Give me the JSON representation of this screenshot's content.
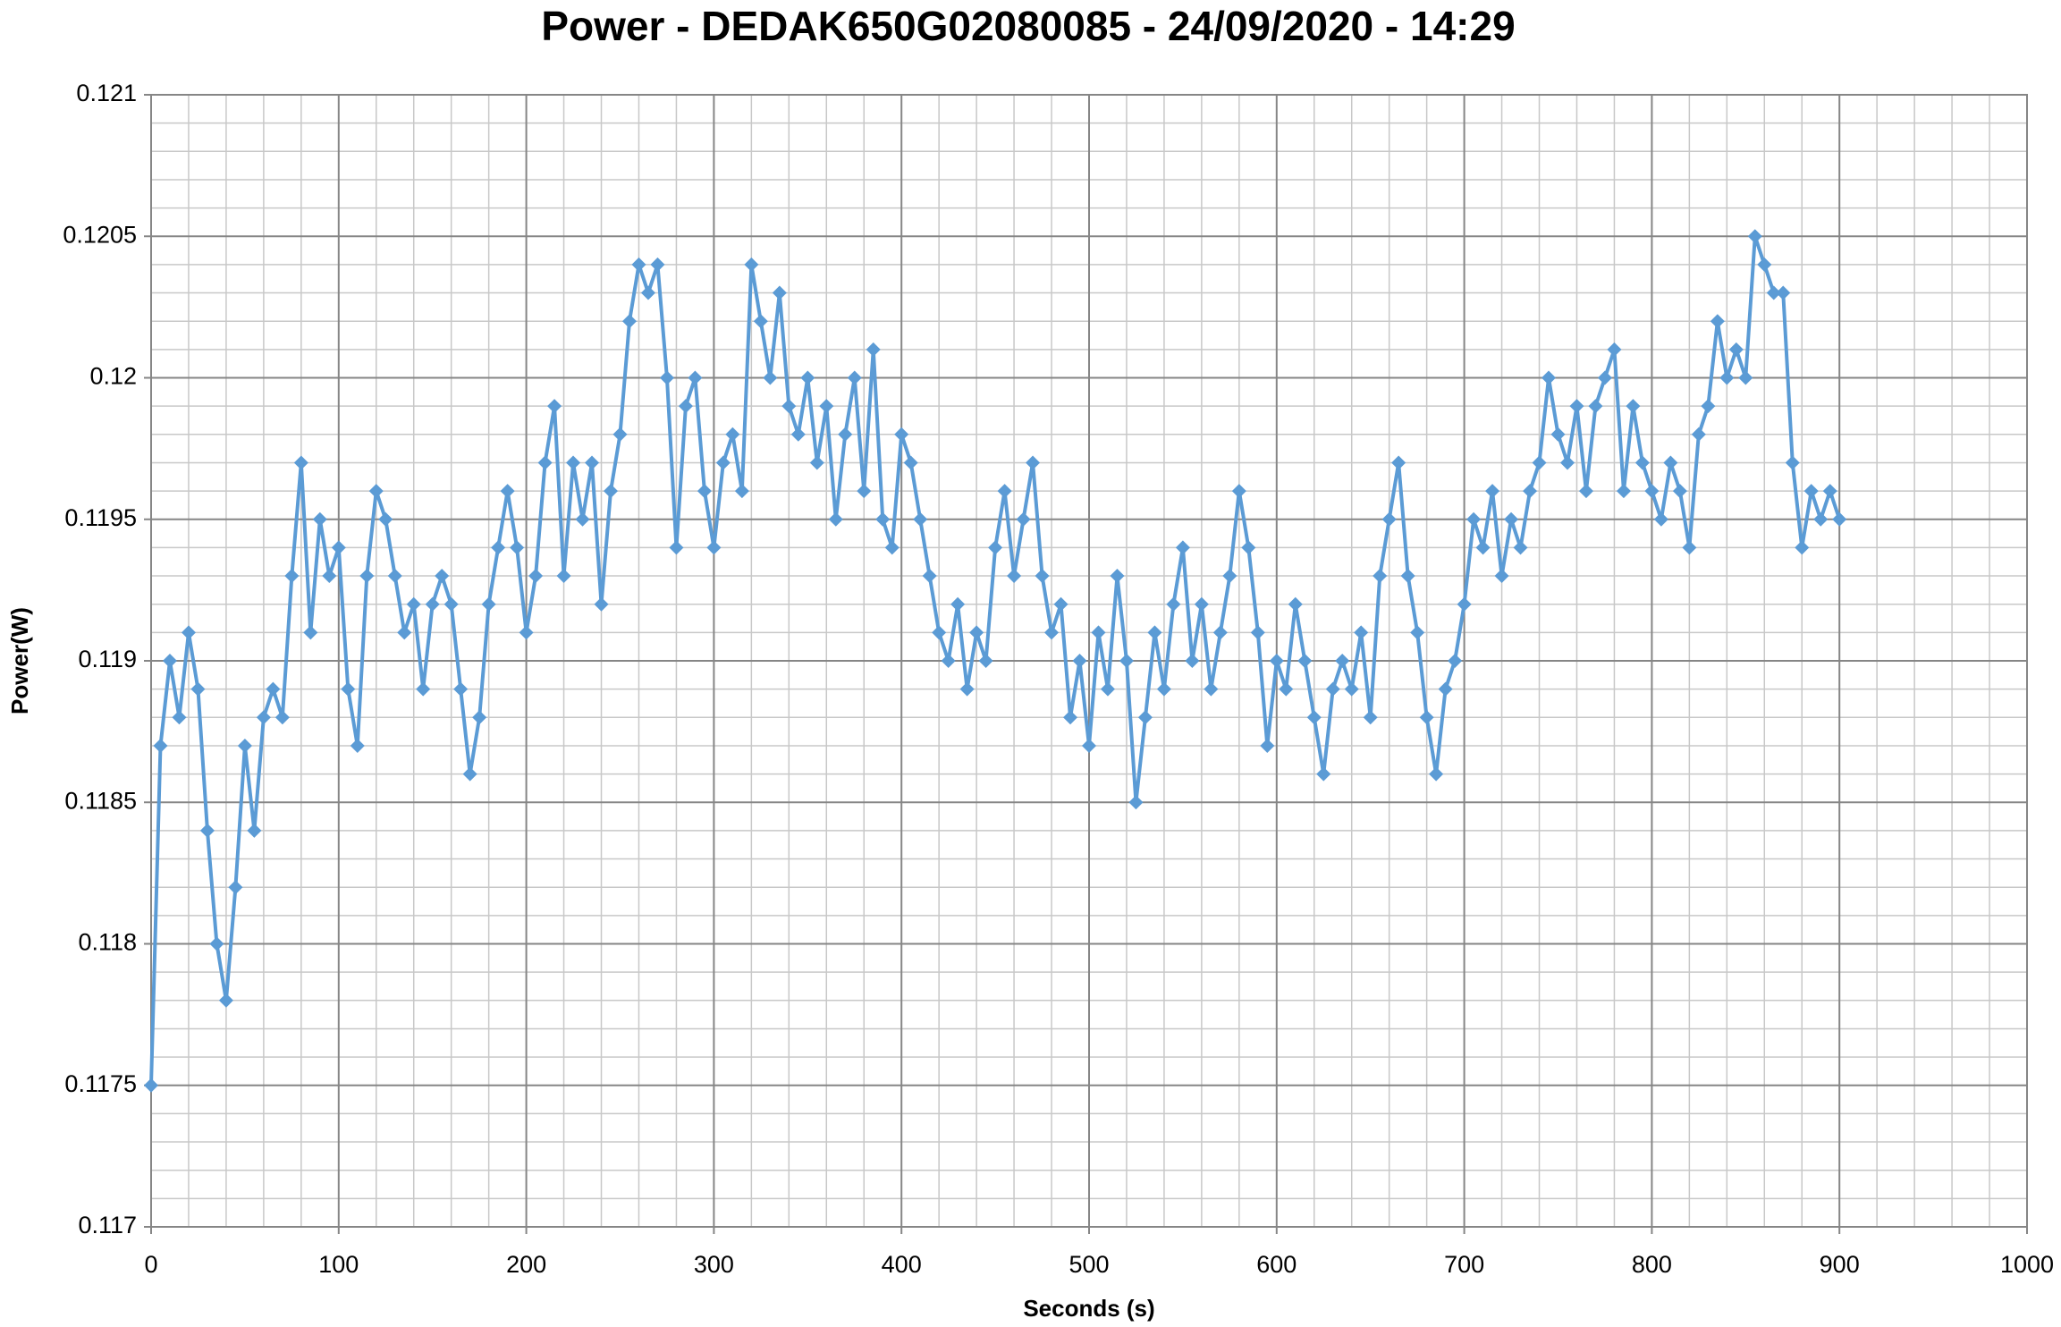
{
  "chart_data": {
    "type": "line",
    "title": "Power - DEDAK650G02080085 - 24/09/2020 - 14:29",
    "x_label": "Seconds (s)",
    "y_label": "Power(W)",
    "xlim": [
      0,
      1000
    ],
    "xticks": [
      0,
      100,
      200,
      300,
      400,
      500,
      600,
      700,
      800,
      900,
      1000
    ],
    "ylim": [
      0.117,
      0.121
    ],
    "yticks": [
      0.117,
      0.1175,
      0.118,
      0.1185,
      0.119,
      0.1195,
      0.12,
      0.1205,
      0.121
    ],
    "grid": true,
    "x": [
      0,
      5,
      10,
      15,
      20,
      25,
      30,
      35,
      40,
      45,
      50,
      55,
      60,
      65,
      70,
      75,
      80,
      85,
      90,
      95,
      100,
      105,
      110,
      115,
      120,
      125,
      130,
      135,
      140,
      145,
      150,
      155,
      160,
      165,
      170,
      175,
      180,
      185,
      190,
      195,
      200,
      205,
      210,
      215,
      220,
      225,
      230,
      235,
      240,
      245,
      250,
      255,
      260,
      265,
      270,
      275,
      280,
      285,
      290,
      295,
      300,
      305,
      310,
      315,
      320,
      325,
      330,
      335,
      340,
      345,
      350,
      355,
      360,
      365,
      370,
      375,
      380,
      385,
      390,
      395,
      400,
      405,
      410,
      415,
      420,
      425,
      430,
      435,
      440,
      445,
      450,
      455,
      460,
      465,
      470,
      475,
      480,
      485,
      490,
      495,
      500,
      505,
      510,
      515,
      520,
      525,
      530,
      535,
      540,
      545,
      550,
      555,
      560,
      565,
      570,
      575,
      580,
      585,
      590,
      595,
      600,
      605,
      610,
      615,
      620,
      625,
      630,
      635,
      640,
      645,
      650,
      655,
      660,
      665,
      670,
      675,
      680,
      685,
      690,
      695,
      700,
      705,
      710,
      715,
      720,
      725,
      730,
      735,
      740,
      745,
      750,
      755,
      760,
      765,
      770,
      775,
      780,
      785,
      790,
      795,
      800,
      805,
      810,
      815,
      820,
      825,
      830,
      835,
      840,
      845,
      850,
      855,
      860,
      865,
      870,
      875,
      880,
      885,
      890,
      895,
      900
    ],
    "series": [
      {
        "color": "#5b9bd5",
        "values": [
          0.1175,
          0.1187,
          0.119,
          0.1188,
          0.1191,
          0.1189,
          0.1184,
          0.118,
          0.1178,
          0.1182,
          0.1187,
          0.1184,
          0.1188,
          0.1189,
          0.1188,
          0.1193,
          0.1197,
          0.1191,
          0.1195,
          0.1193,
          0.1194,
          0.1189,
          0.1187,
          0.1193,
          0.1196,
          0.1195,
          0.1193,
          0.1191,
          0.1192,
          0.1189,
          0.1192,
          0.1193,
          0.1192,
          0.1189,
          0.1186,
          0.1188,
          0.1192,
          0.1194,
          0.1196,
          0.1194,
          0.1191,
          0.1193,
          0.1197,
          0.1199,
          0.1193,
          0.1197,
          0.1195,
          0.1197,
          0.1192,
          0.1196,
          0.1198,
          0.1202,
          0.1204,
          0.1203,
          0.1204,
          0.12,
          0.1194,
          0.1199,
          0.12,
          0.1196,
          0.1194,
          0.1197,
          0.1198,
          0.1196,
          0.1204,
          0.1202,
          0.12,
          0.1203,
          0.1199,
          0.1198,
          0.12,
          0.1197,
          0.1199,
          0.1195,
          0.1198,
          0.12,
          0.1196,
          0.1201,
          0.1195,
          0.1194,
          0.1198,
          0.1197,
          0.1195,
          0.1193,
          0.1191,
          0.119,
          0.1192,
          0.1189,
          0.1191,
          0.119,
          0.1194,
          0.1196,
          0.1193,
          0.1195,
          0.1197,
          0.1193,
          0.1191,
          0.1192,
          0.1188,
          0.119,
          0.1187,
          0.1191,
          0.1189,
          0.1193,
          0.119,
          0.1185,
          0.1188,
          0.1191,
          0.1189,
          0.1192,
          0.1194,
          0.119,
          0.1192,
          0.1189,
          0.1191,
          0.1193,
          0.1196,
          0.1194,
          0.1191,
          0.1187,
          0.119,
          0.1189,
          0.1192,
          0.119,
          0.1188,
          0.1186,
          0.1189,
          0.119,
          0.1189,
          0.1191,
          0.1188,
          0.1193,
          0.1195,
          0.1197,
          0.1193,
          0.1191,
          0.1188,
          0.1186,
          0.1189,
          0.119,
          0.1192,
          0.1195,
          0.1194,
          0.1196,
          0.1193,
          0.1195,
          0.1194,
          0.1196,
          0.1197,
          0.12,
          0.1198,
          0.1197,
          0.1199,
          0.1196,
          0.1199,
          0.12,
          0.1201,
          0.1196,
          0.1199,
          0.1197,
          0.1196,
          0.1195,
          0.1197,
          0.1196,
          0.1194,
          0.1198,
          0.1199,
          0.1202,
          0.12,
          0.1201,
          0.12,
          0.1205,
          0.1204,
          0.1203,
          0.1203,
          0.1197,
          0.1194,
          0.1196,
          0.1195,
          0.1196,
          0.1195
        ]
      }
    ]
  }
}
